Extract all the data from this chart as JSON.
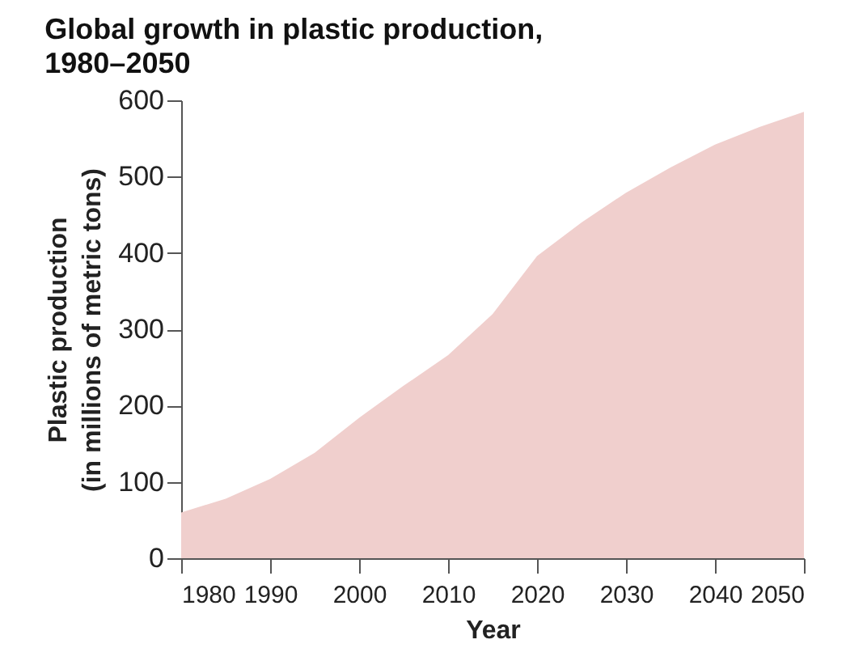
{
  "chart_data": {
    "type": "area",
    "title": "Global growth in plastic production,\n1980–2050",
    "xlabel": "Year",
    "ylabel": "Plastic production\n(in millions of metric tons)",
    "x": [
      1980,
      1985,
      1990,
      1995,
      2000,
      2005,
      2010,
      2015,
      2020,
      2025,
      2030,
      2035,
      2040,
      2045,
      2050
    ],
    "series": [
      {
        "color": "#f0cfcd",
        "values": [
          60,
          78,
          104,
          138,
          184,
          226,
          266,
          320,
          396,
          440,
          479,
          512,
          542,
          565,
          585
        ]
      }
    ],
    "xlim": [
      1980,
      2050
    ],
    "xticks": [
      1980,
      1990,
      2000,
      2010,
      2020,
      2030,
      2040,
      2050
    ],
    "ylim": [
      0,
      600
    ],
    "yticks": [
      0,
      100,
      200,
      300,
      400,
      500,
      600
    ],
    "grid": false
  }
}
